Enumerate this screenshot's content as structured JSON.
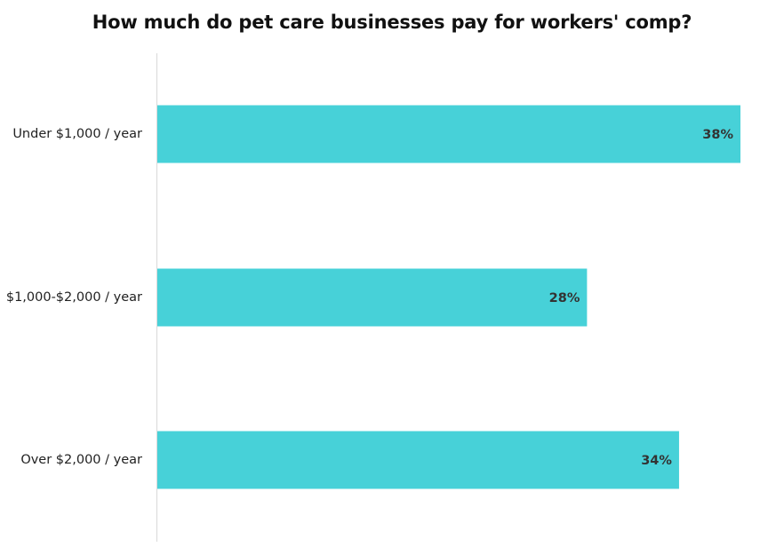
{
  "chart_data": {
    "type": "bar",
    "orientation": "horizontal",
    "title": "How much do pet care businesses pay for workers' comp?",
    "categories": [
      "Under $1,000 / year",
      "$1,000-$2,000 / year",
      "Over $2,000 / year"
    ],
    "values": [
      38,
      28,
      34
    ],
    "value_labels": [
      "38%",
      "28%",
      "34%"
    ],
    "value_unit": "%",
    "xlim": [
      0,
      40
    ],
    "xlabel": "",
    "ylabel": "",
    "grid": false,
    "legend": "none",
    "bar_color": "#47D1D8",
    "axis_color": "#d9d9d9"
  }
}
